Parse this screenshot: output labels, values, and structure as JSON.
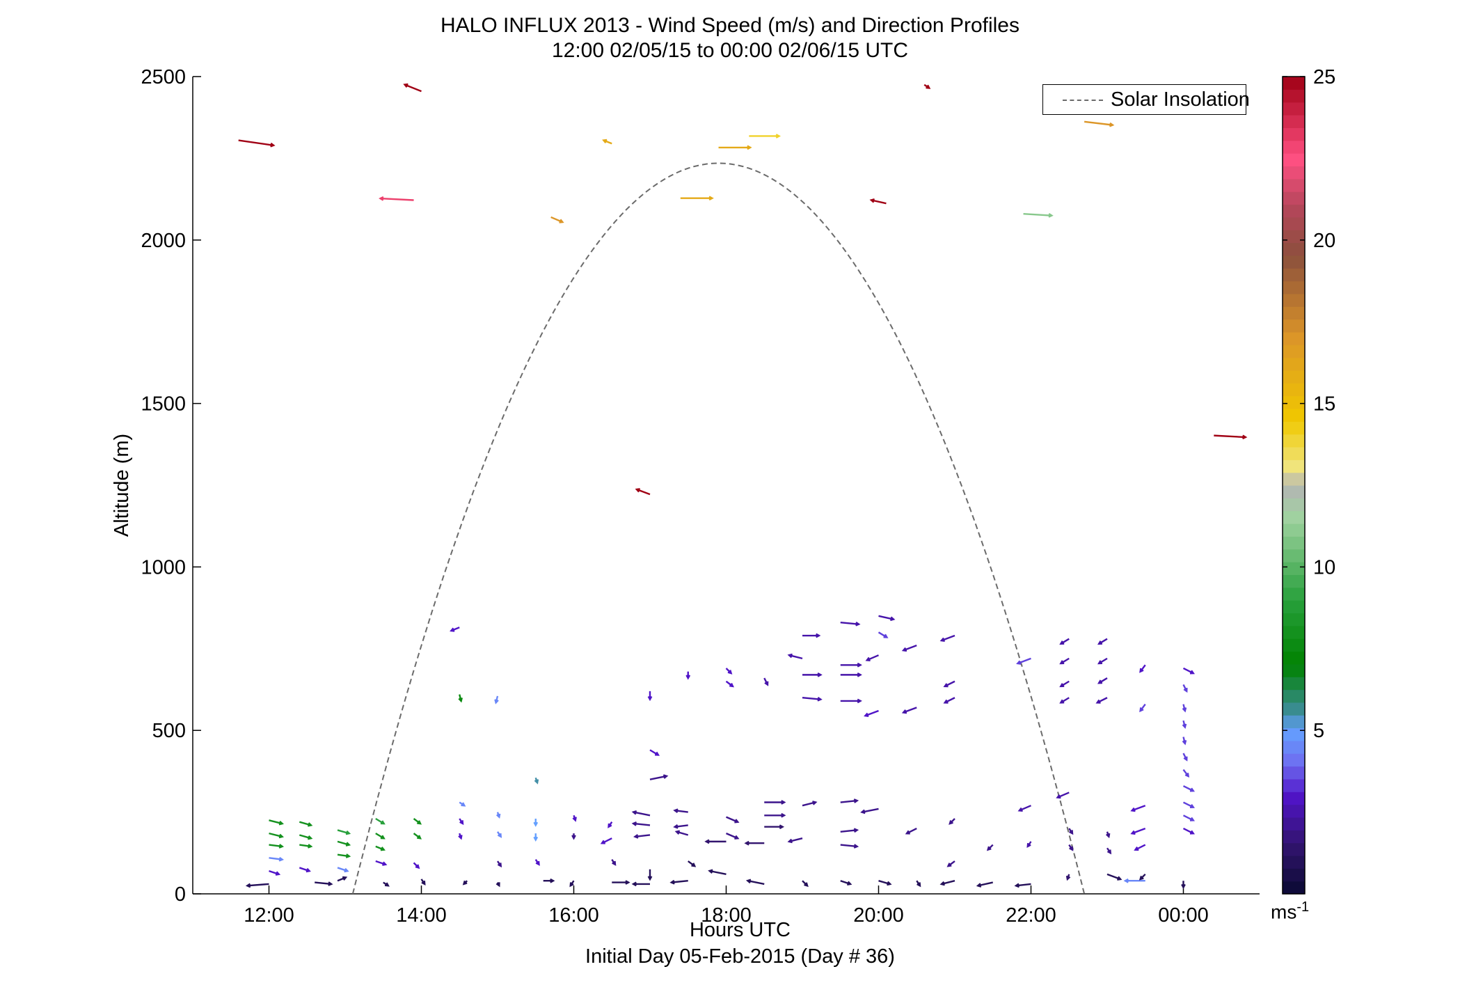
{
  "title": {
    "line1": "HALO INFLUX 2013 - Wind Speed (m/s) and Direction Profiles",
    "line2": "12:00 02/05/15 to 00:00 02/06/15  UTC"
  },
  "legend": {
    "label": "Solar Insolation"
  },
  "colorbar": {
    "unit_main": "ms",
    "unit_exp": "-1",
    "range": [
      0,
      25
    ],
    "ticks": [
      "5",
      "10",
      "15",
      "20",
      "25"
    ]
  },
  "chart_data": {
    "type": "quiver",
    "xlabel": "Hours UTC",
    "xlabel2": "Initial Day 05-Feb-2015 (Day # 36)",
    "ylabel": "Altitude (m)",
    "xlim": [
      11,
      25
    ],
    "ylim": [
      0,
      2500
    ],
    "xticks": [
      {
        "v": 12,
        "label": "12:00"
      },
      {
        "v": 14,
        "label": "14:00"
      },
      {
        "v": 16,
        "label": "16:00"
      },
      {
        "v": 18,
        "label": "18:00"
      },
      {
        "v": 20,
        "label": "20:00"
      },
      {
        "v": 22,
        "label": "22:00"
      },
      {
        "v": 24,
        "label": "00:00"
      }
    ],
    "yticks": [
      {
        "v": 0,
        "label": "0"
      },
      {
        "v": 500,
        "label": "500"
      },
      {
        "v": 1000,
        "label": "1000"
      },
      {
        "v": 1500,
        "label": "1500"
      },
      {
        "v": 2000,
        "label": "2000"
      },
      {
        "v": 2500,
        "label": "2500"
      }
    ],
    "solar_insolation": {
      "start": 13.1,
      "end": 22.7,
      "peak_altitude": 2235,
      "peak_time": 17.9
    },
    "arrow_scale_hours_per_mps": 0.022,
    "vectors": [
      {
        "t": 11.6,
        "z": 2305,
        "u": 21,
        "v": -3,
        "s": 25
      },
      {
        "t": 14.0,
        "z": 2455,
        "u": -10,
        "v": 4,
        "s": 25
      },
      {
        "t": 13.9,
        "z": 2122,
        "u": -20,
        "v": 1,
        "s": 23
      },
      {
        "t": 15.7,
        "z": 2070,
        "u": 7,
        "v": -3,
        "s": 17
      },
      {
        "t": 16.5,
        "z": 2295,
        "u": -5,
        "v": 2,
        "s": 16
      },
      {
        "t": 17.4,
        "z": 2128,
        "u": 19,
        "v": 0,
        "s": 16
      },
      {
        "t": 17.9,
        "z": 2283,
        "u": 19,
        "v": 0,
        "s": 16
      },
      {
        "t": 18.3,
        "z": 2318,
        "u": 18,
        "v": 0,
        "s": 14
      },
      {
        "t": 17.0,
        "z": 1222,
        "u": -8,
        "v": 3,
        "s": 25
      },
      {
        "t": 20.1,
        "z": 2112,
        "u": -9,
        "v": 2,
        "s": 25
      },
      {
        "t": 20.6,
        "z": 2475,
        "u": 3,
        "v": -2,
        "s": 25
      },
      {
        "t": 21.9,
        "z": 2080,
        "u": 17,
        "v": -1,
        "s": 11
      },
      {
        "t": 22.7,
        "z": 2362,
        "u": 17,
        "v": -2,
        "s": 17
      },
      {
        "t": 24.4,
        "z": 1402,
        "u": 19,
        "v": -1,
        "s": 25
      },
      {
        "t": 12.0,
        "z": 225,
        "u": 8,
        "v": -2,
        "s": 8
      },
      {
        "t": 12.0,
        "z": 185,
        "u": 8,
        "v": -2,
        "s": 8
      },
      {
        "t": 12.0,
        "z": 150,
        "u": 8,
        "v": -1,
        "s": 8
      },
      {
        "t": 12.0,
        "z": 110,
        "u": 8,
        "v": -1,
        "s": 4.5
      },
      {
        "t": 12.0,
        "z": 70,
        "u": 6,
        "v": -2,
        "s": 3
      },
      {
        "t": 12.0,
        "z": 30,
        "u": -13,
        "v": -1,
        "s": 1
      },
      {
        "t": 12.4,
        "z": 220,
        "u": 7,
        "v": -2,
        "s": 8
      },
      {
        "t": 12.4,
        "z": 180,
        "u": 7,
        "v": -2,
        "s": 8
      },
      {
        "t": 12.4,
        "z": 150,
        "u": 7,
        "v": -1,
        "s": 8
      },
      {
        "t": 12.4,
        "z": 80,
        "u": 6,
        "v": -2,
        "s": 3
      },
      {
        "t": 12.6,
        "z": 35,
        "u": 10,
        "v": -1,
        "s": 1
      },
      {
        "t": 12.9,
        "z": 195,
        "u": 7,
        "v": -2,
        "s": 9
      },
      {
        "t": 12.9,
        "z": 160,
        "u": 7,
        "v": -2,
        "s": 8
      },
      {
        "t": 12.9,
        "z": 120,
        "u": 7,
        "v": -1,
        "s": 8
      },
      {
        "t": 12.9,
        "z": 80,
        "u": 6,
        "v": -2,
        "s": 4.5
      },
      {
        "t": 12.9,
        "z": 40,
        "u": 5,
        "v": 2,
        "s": 1
      },
      {
        "t": 13.4,
        "z": 230,
        "u": 5,
        "v": -3,
        "s": 9
      },
      {
        "t": 13.4,
        "z": 185,
        "u": 5,
        "v": -3,
        "s": 8
      },
      {
        "t": 13.4,
        "z": 145,
        "u": 5,
        "v": -2,
        "s": 8
      },
      {
        "t": 13.4,
        "z": 100,
        "u": 6,
        "v": -2,
        "s": 3
      },
      {
        "t": 13.5,
        "z": 35,
        "u": 3,
        "v": -2,
        "s": 1
      },
      {
        "t": 13.9,
        "z": 230,
        "u": 4,
        "v": -3,
        "s": 8
      },
      {
        "t": 13.9,
        "z": 185,
        "u": 4,
        "v": -3,
        "s": 8
      },
      {
        "t": 13.9,
        "z": 95,
        "u": 3,
        "v": -3,
        "s": 3
      },
      {
        "t": 14.0,
        "z": 45,
        "u": 2,
        "v": -3,
        "s": 1
      },
      {
        "t": 14.5,
        "z": 815,
        "u": -5,
        "v": -2,
        "s": 3
      },
      {
        "t": 14.5,
        "z": 610,
        "u": 1,
        "v": -4,
        "s": 7.5
      },
      {
        "t": 14.5,
        "z": 280,
        "u": 3,
        "v": -2,
        "s": 4.5
      },
      {
        "t": 14.5,
        "z": 230,
        "u": 2,
        "v": -3,
        "s": 3
      },
      {
        "t": 14.5,
        "z": 185,
        "u": 1,
        "v": -3,
        "s": 3
      },
      {
        "t": 14.6,
        "z": 40,
        "u": -2,
        "v": -2,
        "s": 1
      },
      {
        "t": 15.0,
        "z": 605,
        "u": -1,
        "v": -4,
        "s": 4.5
      },
      {
        "t": 15.0,
        "z": 250,
        "u": 1,
        "v": -3,
        "s": 4.5
      },
      {
        "t": 15.0,
        "z": 190,
        "u": 2,
        "v": -3,
        "s": 4.5
      },
      {
        "t": 15.0,
        "z": 100,
        "u": 2,
        "v": -3,
        "s": 2
      },
      {
        "t": 15.0,
        "z": 35,
        "u": 1,
        "v": -2,
        "s": 1
      },
      {
        "t": 15.5,
        "z": 355,
        "u": 1,
        "v": -3,
        "s": 5.5
      },
      {
        "t": 15.5,
        "z": 230,
        "u": 0,
        "v": -4,
        "s": 5
      },
      {
        "t": 15.5,
        "z": 185,
        "u": 0,
        "v": -4,
        "s": 5
      },
      {
        "t": 15.5,
        "z": 105,
        "u": 2,
        "v": -3,
        "s": 3
      },
      {
        "t": 15.6,
        "z": 40,
        "u": 6,
        "v": 0,
        "s": 1
      },
      {
        "t": 16.0,
        "z": 240,
        "u": 1,
        "v": -3,
        "s": 3
      },
      {
        "t": 16.0,
        "z": 185,
        "u": 0,
        "v": -3,
        "s": 2
      },
      {
        "t": 16.0,
        "z": 40,
        "u": -2,
        "v": -3,
        "s": 1
      },
      {
        "t": 16.5,
        "z": 220,
        "u": -2,
        "v": -3,
        "s": 3
      },
      {
        "t": 16.5,
        "z": 170,
        "u": -6,
        "v": -3,
        "s": 3
      },
      {
        "t": 16.5,
        "z": 105,
        "u": 2,
        "v": -3,
        "s": 2
      },
      {
        "t": 16.5,
        "z": 35,
        "u": 10,
        "v": 0,
        "s": 1
      },
      {
        "t": 17.0,
        "z": 440,
        "u": 5,
        "v": -3,
        "s": 3
      },
      {
        "t": 17.0,
        "z": 620,
        "u": 0,
        "v": -5,
        "s": 3
      },
      {
        "t": 17.0,
        "z": 350,
        "u": 10,
        "v": 2,
        "s": 2
      },
      {
        "t": 17.0,
        "z": 240,
        "u": -10,
        "v": 2,
        "s": 2
      },
      {
        "t": 17.0,
        "z": 210,
        "u": -10,
        "v": 1,
        "s": 2
      },
      {
        "t": 17.0,
        "z": 180,
        "u": -9,
        "v": -1,
        "s": 2
      },
      {
        "t": 17.0,
        "z": 75,
        "u": 0,
        "v": -6,
        "s": 1
      },
      {
        "t": 17.0,
        "z": 30,
        "u": -10,
        "v": 0,
        "s": 1
      },
      {
        "t": 17.5,
        "z": 680,
        "u": 0,
        "v": -4,
        "s": 3
      },
      {
        "t": 17.5,
        "z": 250,
        "u": -8,
        "v": 1,
        "s": 2
      },
      {
        "t": 17.5,
        "z": 210,
        "u": -8,
        "v": -1,
        "s": 2
      },
      {
        "t": 17.5,
        "z": 180,
        "u": -7,
        "v": 2,
        "s": 2
      },
      {
        "t": 17.5,
        "z": 100,
        "u": 4,
        "v": -3,
        "s": 1
      },
      {
        "t": 17.5,
        "z": 40,
        "u": -10,
        "v": -1,
        "s": 1
      },
      {
        "t": 18.0,
        "z": 650,
        "u": 4,
        "v": -3,
        "s": 3
      },
      {
        "t": 18.0,
        "z": 690,
        "u": 3,
        "v": -3,
        "s": 3
      },
      {
        "t": 18.0,
        "z": 235,
        "u": 7,
        "v": -3,
        "s": 2
      },
      {
        "t": 18.0,
        "z": 185,
        "u": 7,
        "v": -3,
        "s": 2
      },
      {
        "t": 18.0,
        "z": 160,
        "u": -12,
        "v": 0,
        "s": 1.5
      },
      {
        "t": 18.0,
        "z": 60,
        "u": -10,
        "v": 2,
        "s": 1
      },
      {
        "t": 18.5,
        "z": 660,
        "u": 2,
        "v": -4,
        "s": 2.5
      },
      {
        "t": 18.5,
        "z": 280,
        "u": 12,
        "v": 0,
        "s": 2
      },
      {
        "t": 18.5,
        "z": 240,
        "u": 12,
        "v": 0,
        "s": 2
      },
      {
        "t": 18.5,
        "z": 205,
        "u": 11,
        "v": 0,
        "s": 1.5
      },
      {
        "t": 18.5,
        "z": 155,
        "u": -11,
        "v": 0,
        "s": 1.5
      },
      {
        "t": 18.5,
        "z": 30,
        "u": -10,
        "v": 2,
        "s": 1
      },
      {
        "t": 19.0,
        "z": 790,
        "u": 10,
        "v": 0,
        "s": 2.5
      },
      {
        "t": 19.0,
        "z": 720,
        "u": -8,
        "v": 2,
        "s": 2.5
      },
      {
        "t": 19.0,
        "z": 670,
        "u": 11,
        "v": 0,
        "s": 2.5
      },
      {
        "t": 19.0,
        "z": 600,
        "u": 11,
        "v": -1,
        "s": 2.5
      },
      {
        "t": 19.0,
        "z": 270,
        "u": 8,
        "v": 2,
        "s": 2
      },
      {
        "t": 19.0,
        "z": 170,
        "u": -8,
        "v": -2,
        "s": 2
      },
      {
        "t": 19.0,
        "z": 40,
        "u": 3,
        "v": -3,
        "s": 1
      },
      {
        "t": 19.5,
        "z": 830,
        "u": 11,
        "v": -1,
        "s": 2.5
      },
      {
        "t": 19.5,
        "z": 700,
        "u": 12,
        "v": 0,
        "s": 2.5
      },
      {
        "t": 19.5,
        "z": 670,
        "u": 12,
        "v": 0,
        "s": 2.5
      },
      {
        "t": 19.5,
        "z": 590,
        "u": 12,
        "v": 0,
        "s": 2.5
      },
      {
        "t": 19.5,
        "z": 280,
        "u": 10,
        "v": 1,
        "s": 2
      },
      {
        "t": 19.5,
        "z": 190,
        "u": 10,
        "v": 1,
        "s": 2
      },
      {
        "t": 19.5,
        "z": 150,
        "u": 10,
        "v": -1,
        "s": 2
      },
      {
        "t": 19.5,
        "z": 40,
        "u": 6,
        "v": -2,
        "s": 1
      },
      {
        "t": 20.0,
        "z": 850,
        "u": 9,
        "v": -2,
        "s": 2.5
      },
      {
        "t": 20.0,
        "z": 800,
        "u": 5,
        "v": -3,
        "s": 3.5
      },
      {
        "t": 20.0,
        "z": 730,
        "u": -7,
        "v": -3,
        "s": 2.5
      },
      {
        "t": 20.0,
        "z": 560,
        "u": -8,
        "v": -3,
        "s": 3
      },
      {
        "t": 20.0,
        "z": 260,
        "u": -10,
        "v": -2,
        "s": 2
      },
      {
        "t": 20.0,
        "z": 40,
        "u": 7,
        "v": -2,
        "s": 1
      },
      {
        "t": 20.5,
        "z": 760,
        "u": -8,
        "v": -3,
        "s": 2.5
      },
      {
        "t": 20.5,
        "z": 570,
        "u": -8,
        "v": -3,
        "s": 2.5
      },
      {
        "t": 20.5,
        "z": 200,
        "u": -6,
        "v": -3,
        "s": 2
      },
      {
        "t": 20.5,
        "z": 40,
        "u": 2,
        "v": -3,
        "s": 1
      },
      {
        "t": 21.0,
        "z": 790,
        "u": -8,
        "v": -3,
        "s": 2.5
      },
      {
        "t": 21.0,
        "z": 650,
        "u": -6,
        "v": -3,
        "s": 2.5
      },
      {
        "t": 21.0,
        "z": 600,
        "u": -6,
        "v": -3,
        "s": 2.5
      },
      {
        "t": 21.0,
        "z": 230,
        "u": -3,
        "v": -3,
        "s": 2
      },
      {
        "t": 21.0,
        "z": 100,
        "u": -4,
        "v": -3,
        "s": 2
      },
      {
        "t": 21.0,
        "z": 40,
        "u": -8,
        "v": -2,
        "s": 1
      },
      {
        "t": 21.5,
        "z": 150,
        "u": -3,
        "v": -3,
        "s": 2
      },
      {
        "t": 21.5,
        "z": 35,
        "u": -9,
        "v": -2,
        "s": 1
      },
      {
        "t": 22.0,
        "z": 720,
        "u": -8,
        "v": -3,
        "s": 3.5
      },
      {
        "t": 22.0,
        "z": 270,
        "u": -7,
        "v": -3,
        "s": 2.5
      },
      {
        "t": 22.0,
        "z": 160,
        "u": -2,
        "v": -3,
        "s": 2.5
      },
      {
        "t": 22.0,
        "z": 30,
        "u": -9,
        "v": -1,
        "s": 1
      },
      {
        "t": 22.5,
        "z": 780,
        "u": -5,
        "v": -3,
        "s": 2.5
      },
      {
        "t": 22.5,
        "z": 720,
        "u": -5,
        "v": -3,
        "s": 2.5
      },
      {
        "t": 22.5,
        "z": 650,
        "u": -5,
        "v": -3,
        "s": 2.5
      },
      {
        "t": 22.5,
        "z": 600,
        "u": -5,
        "v": -3,
        "s": 2.5
      },
      {
        "t": 22.5,
        "z": 310,
        "u": -7,
        "v": -3,
        "s": 2.5
      },
      {
        "t": 22.5,
        "z": 200,
        "u": 2,
        "v": -3,
        "s": 2
      },
      {
        "t": 22.5,
        "z": 150,
        "u": 2,
        "v": -3,
        "s": 2
      },
      {
        "t": 22.5,
        "z": 60,
        "u": -1,
        "v": -3,
        "s": 1.5
      },
      {
        "t": 23.0,
        "z": 780,
        "u": -5,
        "v": -3,
        "s": 2.5
      },
      {
        "t": 23.0,
        "z": 720,
        "u": -5,
        "v": -3,
        "s": 2.5
      },
      {
        "t": 23.0,
        "z": 660,
        "u": -5,
        "v": -3,
        "s": 2.5
      },
      {
        "t": 23.0,
        "z": 600,
        "u": -6,
        "v": -3,
        "s": 2.5
      },
      {
        "t": 23.0,
        "z": 190,
        "u": 1,
        "v": -3,
        "s": 2
      },
      {
        "t": 23.0,
        "z": 140,
        "u": 2,
        "v": -3,
        "s": 2
      },
      {
        "t": 23.0,
        "z": 60,
        "u": 8,
        "v": -3,
        "s": 1
      },
      {
        "t": 23.5,
        "z": 700,
        "u": -3,
        "v": -4,
        "s": 3
      },
      {
        "t": 23.5,
        "z": 580,
        "u": -3,
        "v": -4,
        "s": 3.5
      },
      {
        "t": 23.5,
        "z": 270,
        "u": -8,
        "v": -3,
        "s": 3
      },
      {
        "t": 23.5,
        "z": 200,
        "u": -8,
        "v": -3,
        "s": 3
      },
      {
        "t": 23.5,
        "z": 150,
        "u": -6,
        "v": -3,
        "s": 3
      },
      {
        "t": 23.5,
        "z": 40,
        "u": -12,
        "v": 0,
        "s": 4.5
      },
      {
        "t": 23.5,
        "z": 60,
        "u": -3,
        "v": -3,
        "s": 1
      },
      {
        "t": 24.0,
        "z": 690,
        "u": 6,
        "v": -3,
        "s": 3
      },
      {
        "t": 24.0,
        "z": 640,
        "u": 2,
        "v": -4,
        "s": 3.5
      },
      {
        "t": 24.0,
        "z": 580,
        "u": 1,
        "v": -4,
        "s": 3.5
      },
      {
        "t": 24.0,
        "z": 530,
        "u": 1,
        "v": -4,
        "s": 3.5
      },
      {
        "t": 24.0,
        "z": 480,
        "u": 1,
        "v": -4,
        "s": 3.5
      },
      {
        "t": 24.0,
        "z": 430,
        "u": 2,
        "v": -4,
        "s": 3.5
      },
      {
        "t": 24.0,
        "z": 380,
        "u": 3,
        "v": -4,
        "s": 3.5
      },
      {
        "t": 24.0,
        "z": 330,
        "u": 6,
        "v": -3,
        "s": 3.5
      },
      {
        "t": 24.0,
        "z": 280,
        "u": 6,
        "v": -3,
        "s": 3.5
      },
      {
        "t": 24.0,
        "z": 240,
        "u": 6,
        "v": -3,
        "s": 3.5
      },
      {
        "t": 24.0,
        "z": 200,
        "u": 6,
        "v": -3,
        "s": 3
      },
      {
        "t": 24.0,
        "z": 40,
        "u": 0,
        "v": -4,
        "s": 1
      }
    ]
  }
}
